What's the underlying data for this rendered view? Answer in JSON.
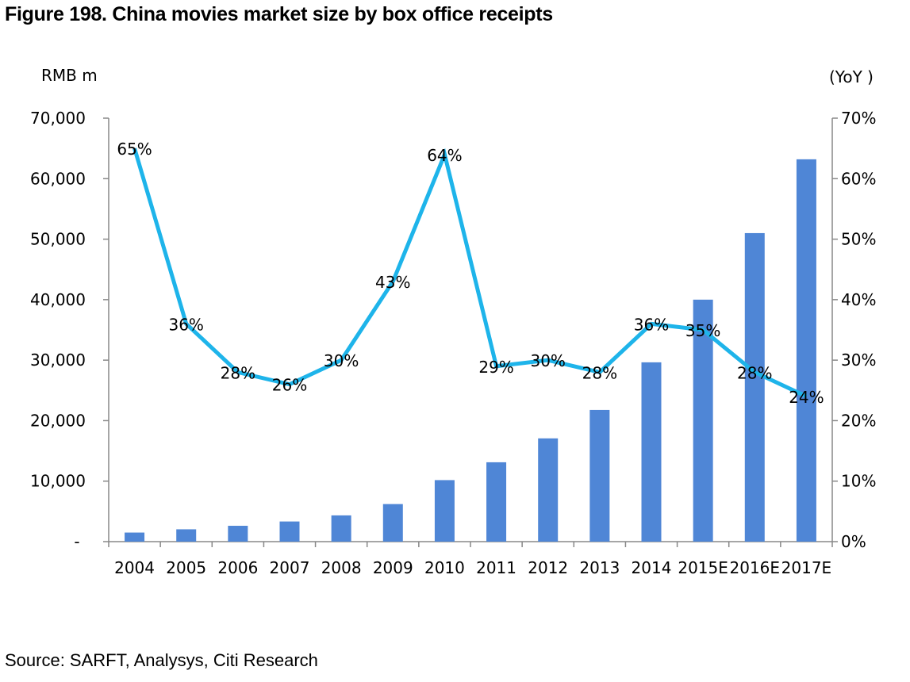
{
  "figure": {
    "title": "Figure 198. China movies market size by box office receipts",
    "source": "Source: SARFT, Analysys, Citi Research"
  },
  "chart_data": {
    "type": "bar+line",
    "title": "Figure 198. China movies market size by box office receipts",
    "categories": [
      "2004",
      "2005",
      "2006",
      "2007",
      "2008",
      "2009",
      "2010",
      "2011",
      "2012",
      "2013",
      "2014",
      "2015E",
      "2016E",
      "2017E"
    ],
    "series": [
      {
        "name": "Box office receipts",
        "axis": "left",
        "type": "bar",
        "color": "#4F86D6",
        "values": [
          1500,
          2040,
          2620,
          3330,
          4340,
          6210,
          10170,
          13120,
          17070,
          21770,
          29640,
          40000,
          51000,
          63200
        ]
      },
      {
        "name": "YoY",
        "axis": "right",
        "type": "line",
        "color": "#1EB4EA",
        "values": [
          65,
          36,
          28,
          26,
          30,
          43,
          64,
          29,
          30,
          28,
          36,
          35,
          28,
          24
        ],
        "labels": [
          "65%",
          "36%",
          "28%",
          "26%",
          "30%",
          "43%",
          "64%",
          "29%",
          "30%",
          "28%",
          "36%",
          "35%",
          "28%",
          "24%"
        ]
      }
    ],
    "left_axis": {
      "label": "RMB  m",
      "ylim": [
        0,
        70000
      ],
      "ticks": [
        "-",
        "10,000",
        "20,000",
        "30,000",
        "40,000",
        "50,000",
        "60,000",
        "70,000"
      ]
    },
    "right_axis": {
      "label": "(YoY )",
      "ylim": [
        0,
        70
      ],
      "ticks": [
        "0%",
        "10%",
        "20%",
        "30%",
        "40%",
        "50%",
        "60%",
        "70%"
      ]
    }
  }
}
